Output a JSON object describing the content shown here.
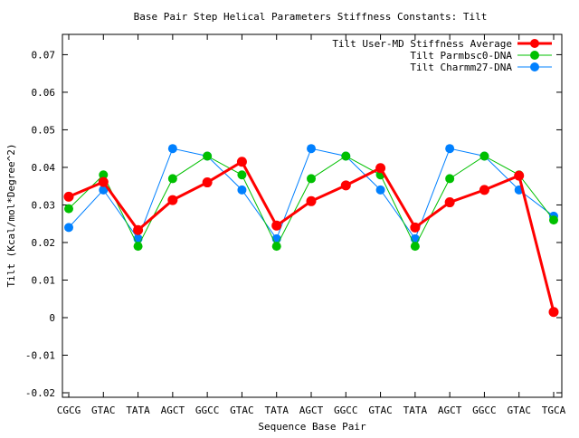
{
  "chart_data": {
    "type": "line",
    "title": "Base Pair Step Helical Parameters Stiffness Constants: Tilt",
    "xlabel": "Sequence Base Pair",
    "ylabel": "Tilt (Kcal/mol*Degree^2)",
    "ylim": [
      -0.0212,
      0.0754
    ],
    "yticks": [
      -0.02,
      -0.01,
      0,
      0.01,
      0.02,
      0.03,
      0.04,
      0.05,
      0.06,
      0.07
    ],
    "ytick_labels": [
      "-0.02",
      "-0.01",
      "0",
      "0.01",
      "0.02",
      "0.03",
      "0.04",
      "0.05",
      "0.06",
      "0.07"
    ],
    "categories": [
      "CGCG",
      "GTAC",
      "TATA",
      "AGCT",
      "GGCC",
      "GTAC",
      "TATA",
      "AGCT",
      "GGCC",
      "GTAC",
      "TATA",
      "AGCT",
      "GGCC",
      "GTAC",
      "TGCA"
    ],
    "legend_position": "top-right",
    "series": [
      {
        "name": "Tilt User-MD Stiffness Average",
        "color": "#ff0000",
        "values": [
          0.0322,
          0.0361,
          0.0233,
          0.0313,
          0.036,
          0.0415,
          0.0245,
          0.031,
          0.0352,
          0.0398,
          0.024,
          0.0307,
          0.034,
          0.0378,
          0.0015
        ]
      },
      {
        "name": "Tilt Parmbsc0-DNA",
        "color": "#00c000",
        "values": [
          0.029,
          0.038,
          0.019,
          0.037,
          0.043,
          0.038,
          0.019,
          0.037,
          0.043,
          0.038,
          0.019,
          0.037,
          0.043,
          0.038,
          0.026
        ]
      },
      {
        "name": "Tilt Charmm27-DNA",
        "color": "#0080ff",
        "values": [
          0.024,
          0.034,
          0.021,
          0.045,
          0.043,
          0.034,
          0.021,
          0.045,
          0.043,
          0.034,
          0.021,
          0.045,
          0.043,
          0.034,
          0.027
        ]
      }
    ]
  }
}
